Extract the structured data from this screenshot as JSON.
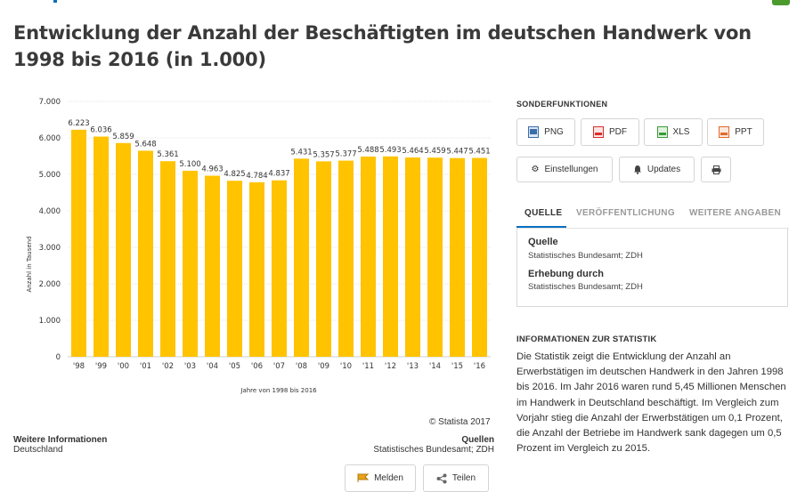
{
  "title": "Entwicklung der Anzahl der Beschäftigten im deutschen Handwerk von 1998 bis 2016 (in 1.000)",
  "chart_data": {
    "type": "bar",
    "categories": [
      "'98",
      "'99",
      "'00",
      "'01",
      "'02",
      "'03",
      "'04",
      "'05",
      "'06",
      "'07",
      "'08",
      "'09",
      "'10",
      "'11",
      "'12",
      "'13",
      "'14",
      "'15",
      "'16"
    ],
    "values": [
      6223,
      6036,
      5859,
      5648,
      5361,
      5100,
      4963,
      4825,
      4784,
      4837,
      5431,
      5357,
      5377,
      5488,
      5493,
      5464,
      5459,
      5447,
      5451
    ],
    "value_labels": [
      "6.223",
      "6.036",
      "5.859",
      "5.648",
      "5.361",
      "5.100",
      "4.963",
      "4.825",
      "4.784",
      "4.837",
      "5.431",
      "5.357",
      "5.377",
      "5.488",
      "5.493",
      "5.464",
      "5.459",
      "5.447",
      "5.451"
    ],
    "ylabel": "Anzahl in Tausend",
    "xlabel": "Jahre von 1998 bis 2016",
    "ylim": [
      0,
      7000
    ],
    "yticks": [
      0,
      1000,
      2000,
      3000,
      4000,
      5000,
      6000,
      7000
    ],
    "ytick_labels": [
      "0",
      "1.000",
      "2.000",
      "3.000",
      "4.000",
      "5.000",
      "6.000",
      "7.000"
    ],
    "bar_color": "#ffc300",
    "grid": true
  },
  "copyright": "© Statista 2017",
  "footer": {
    "more_info_label": "Weitere Informationen",
    "more_info_value": "Deutschland",
    "sources_label": "Quellen",
    "sources_value": "Statistisches Bundesamt; ZDH"
  },
  "actions": {
    "report": "Melden",
    "share": "Teilen"
  },
  "sidebar": {
    "title": "SONDERFUNKTIONEN",
    "exports": [
      "PNG",
      "PDF",
      "XLS",
      "PPT"
    ],
    "settings": "Einstellungen",
    "updates": "Updates",
    "tabs": [
      "QUELLE",
      "VERÖFFENTLICHUNG",
      "WEITERE ANGABEN"
    ],
    "source_label": "Quelle",
    "source_value": "Statistisches Bundesamt; ZDH",
    "survey_label": "Erhebung durch",
    "survey_value": "Statistisches Bundesamt; ZDH",
    "info_title": "INFORMATIONEN ZUR STATISTIK",
    "info_text": "Die Statistik zeigt die Entwicklung der Anzahl an Erwerbstätigen im deutschen Handwerk in den Jahren 1998 bis 2016. Im Jahr 2016 waren rund 5,45 Millionen Menschen im Handwerk in Deutschland beschäftigt. Im Vergleich zum Vorjahr stieg die Anzahl der Erwerbstätigen um 0,1 Prozent, die Anzahl der Betriebe im Handwerk sank dagegen um 0,5 Prozent im Vergleich zu 2015."
  },
  "colors": {
    "accent": "#0a6ebd",
    "bar": "#ffc300",
    "pdf": "#d9302c",
    "xls": "#3e9a3a",
    "ppt": "#e06a2b",
    "png": "#3a6ea8",
    "flag": "#e8a317"
  }
}
